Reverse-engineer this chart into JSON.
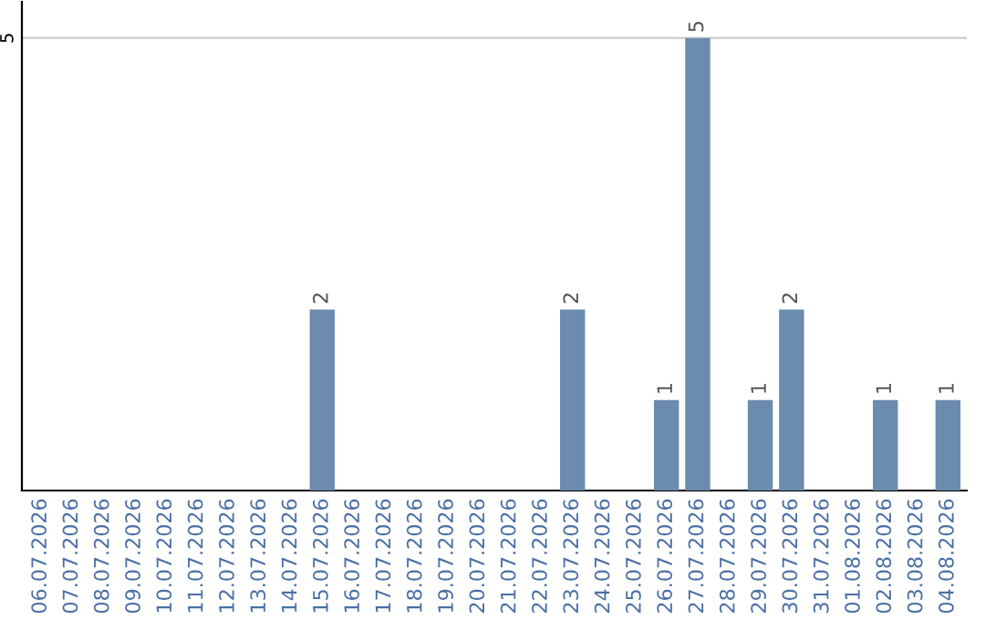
{
  "chart_data": {
    "type": "bar",
    "categories": [
      "06.07.2026",
      "07.07.2026",
      "08.07.2026",
      "09.07.2026",
      "10.07.2026",
      "11.07.2026",
      "12.07.2026",
      "13.07.2026",
      "14.07.2026",
      "15.07.2026",
      "16.07.2026",
      "17.07.2026",
      "18.07.2026",
      "19.07.2026",
      "20.07.2026",
      "21.07.2026",
      "22.07.2026",
      "23.07.2026",
      "24.07.2026",
      "25.07.2026",
      "26.07.2026",
      "27.07.2026",
      "28.07.2026",
      "29.07.2026",
      "30.07.2026",
      "31.07.2026",
      "01.08.2026",
      "02.08.2026",
      "03.08.2026",
      "04.08.2026"
    ],
    "values": [
      0,
      0,
      0,
      0,
      0,
      0,
      0,
      0,
      0,
      2,
      0,
      0,
      0,
      0,
      0,
      0,
      0,
      2,
      0,
      0,
      1,
      5,
      0,
      1,
      2,
      0,
      0,
      1,
      0,
      1
    ],
    "value_labels": [
      null,
      null,
      null,
      null,
      null,
      null,
      null,
      null,
      null,
      "2",
      null,
      null,
      null,
      null,
      null,
      null,
      null,
      "2",
      null,
      null,
      "1",
      "5",
      null,
      "1",
      "2",
      null,
      null,
      "1",
      null,
      "1"
    ],
    "color": "#6b8cae",
    "ylim": [
      0,
      5.4
    ],
    "yticks": [
      5
    ],
    "grid": "y",
    "legend": false
  }
}
